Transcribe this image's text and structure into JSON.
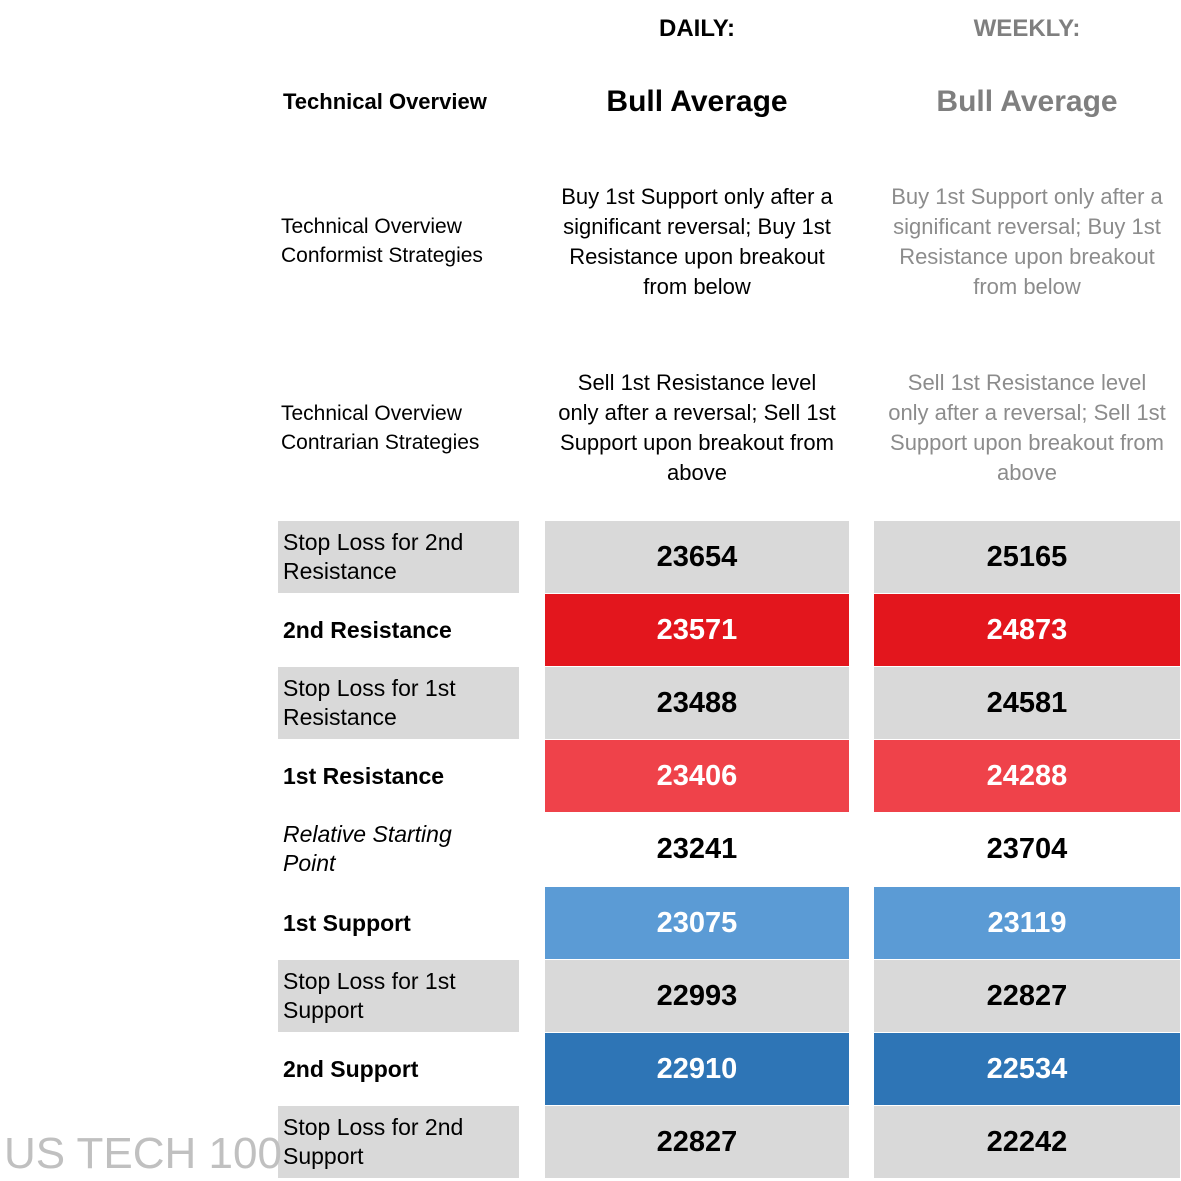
{
  "header": {
    "daily_label": "DAILY:",
    "weekly_label": "WEEKLY:"
  },
  "overview": {
    "label": "Technical Overview",
    "daily": "Bull Average",
    "weekly": "Bull Average"
  },
  "conformist": {
    "label_line1": "Technical Overview",
    "label_line2": "Conformist Strategies",
    "daily_lines": [
      "Buy 1st Support only after a",
      "significant reversal; Buy 1st",
      "Resistance upon breakout",
      "from below"
    ],
    "weekly_lines": [
      "Buy 1st Support only after a",
      "significant reversal; Buy 1st",
      "Resistance upon breakout",
      "from below"
    ]
  },
  "contrarian": {
    "label_line1": "Technical Overview",
    "label_line2": "Contrarian Strategies",
    "daily_lines": [
      "Sell 1st Resistance level",
      "only after a reversal; Sell 1st",
      "Support upon breakout from",
      "above"
    ],
    "weekly_lines": [
      "Sell 1st Resistance level",
      "only after a reversal; Sell 1st",
      "Support upon breakout from",
      "above"
    ]
  },
  "rows": [
    {
      "label_line1": "Stop Loss for 2nd",
      "label_line2": "Resistance",
      "daily": "23654",
      "weekly": "25165",
      "color": "#d9d9d9"
    },
    {
      "label_line1": "2nd Resistance",
      "label_line2": "",
      "daily": "23571",
      "weekly": "24873",
      "color": "#e3161d"
    },
    {
      "label_line1": "Stop Loss for 1st",
      "label_line2": "Resistance",
      "daily": "23488",
      "weekly": "24581",
      "color": "#d9d9d9"
    },
    {
      "label_line1": "1st Resistance",
      "label_line2": "",
      "daily": "23406",
      "weekly": "24288",
      "color": "#ef424a"
    },
    {
      "label_line1": "Relative Starting",
      "label_line2": "Point",
      "daily": "23241",
      "weekly": "23704",
      "color": "#ffffff"
    },
    {
      "label_line1": "1st Support",
      "label_line2": "",
      "daily": "23075",
      "weekly": "23119",
      "color": "#5b9bd5"
    },
    {
      "label_line1": "Stop Loss for 1st",
      "label_line2": "Support",
      "daily": "22993",
      "weekly": "22827",
      "color": "#d9d9d9"
    },
    {
      "label_line1": "2nd Support",
      "label_line2": "",
      "daily": "22910",
      "weekly": "22534",
      "color": "#2e75b6"
    },
    {
      "label_line1": "Stop Loss for 2nd",
      "label_line2": "Support",
      "daily": "22827",
      "weekly": "22242",
      "color": "#d9d9d9"
    }
  ],
  "watermark": "US TECH 100"
}
